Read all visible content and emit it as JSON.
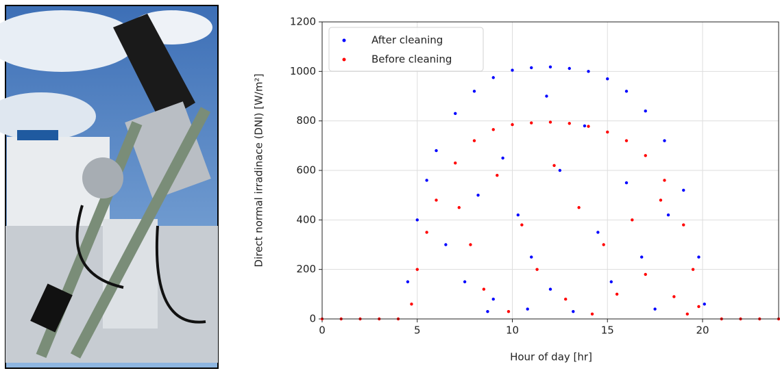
{
  "chart_data": {
    "type": "scatter",
    "xlabel": "Hour of day [hr]",
    "ylabel": "Direct normal irradinace (DNI) [W/m²]",
    "xlim": [
      0,
      24
    ],
    "ylim": [
      0,
      1200
    ],
    "xticks": [
      0,
      5,
      10,
      15,
      20
    ],
    "yticks": [
      0,
      200,
      400,
      600,
      800,
      1000,
      1200
    ],
    "grid": true,
    "legend": "upper left",
    "series": [
      {
        "name": "After cleaning",
        "color": "#0000ff",
        "x": [
          4.5,
          5,
          5.5,
          6,
          7,
          8,
          9,
          10,
          11,
          12,
          13,
          14,
          15,
          16,
          17,
          18,
          19,
          19.8,
          20.1,
          6.5,
          7.5,
          8.2,
          9,
          9.5,
          10.3,
          11,
          11.8,
          12.5,
          13.2,
          13.8,
          14.5,
          15.2,
          16,
          16.8,
          17.5,
          18.2,
          8.7,
          10.8,
          12
        ],
        "values": [
          150,
          400,
          560,
          680,
          830,
          920,
          975,
          1005,
          1015,
          1018,
          1012,
          1000,
          970,
          920,
          840,
          720,
          520,
          250,
          60,
          300,
          150,
          500,
          80,
          650,
          420,
          250,
          900,
          600,
          30,
          780,
          350,
          150,
          550,
          250,
          40,
          420,
          30,
          40,
          120
        ]
      },
      {
        "name": "Before cleaning",
        "color": "#ff0000",
        "x": [
          4.7,
          5,
          5.5,
          6,
          7,
          8,
          9,
          10,
          11,
          12,
          13,
          14,
          15,
          16,
          17,
          18,
          19,
          19.5,
          19.8,
          7.2,
          7.8,
          8.5,
          9.2,
          9.8,
          10.5,
          11.3,
          12.2,
          12.8,
          13.5,
          14.2,
          14.8,
          15.5,
          16.3,
          17,
          17.8,
          18.5,
          19.2,
          0,
          1,
          2,
          3,
          4,
          21,
          22,
          23,
          24
        ],
        "values": [
          60,
          200,
          350,
          480,
          630,
          720,
          765,
          785,
          792,
          795,
          790,
          778,
          755,
          720,
          660,
          560,
          380,
          200,
          50,
          450,
          300,
          120,
          580,
          30,
          380,
          200,
          620,
          80,
          450,
          20,
          300,
          100,
          400,
          180,
          480,
          90,
          20,
          0,
          0,
          0,
          0,
          0,
          0,
          0,
          0,
          0
        ]
      }
    ]
  }
}
